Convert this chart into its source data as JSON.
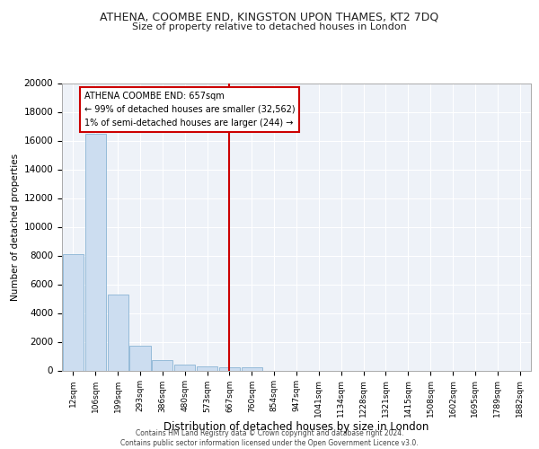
{
  "title": "ATHENA, COOMBE END, KINGSTON UPON THAMES, KT2 7DQ",
  "subtitle": "Size of property relative to detached houses in London",
  "xlabel": "Distribution of detached houses by size in London",
  "ylabel": "Number of detached properties",
  "bar_color": "#ccddf0",
  "bar_edge_color": "#8ab4d4",
  "background_color": "#eef2f8",
  "grid_color": "#ffffff",
  "vline_color": "#cc0000",
  "annotation_title": "ATHENA COOMBE END: 657sqm",
  "annotation_line1": "← 99% of detached houses are smaller (32,562)",
  "annotation_line2": "1% of semi-detached houses are larger (244) →",
  "annotation_box_color": "#ffffff",
  "annotation_box_edge_color": "#cc0000",
  "categories": [
    "12sqm",
    "106sqm",
    "199sqm",
    "293sqm",
    "386sqm",
    "480sqm",
    "573sqm",
    "667sqm",
    "760sqm",
    "854sqm",
    "947sqm",
    "1041sqm",
    "1134sqm",
    "1228sqm",
    "1321sqm",
    "1415sqm",
    "1508sqm",
    "1602sqm",
    "1695sqm",
    "1789sqm",
    "1882sqm"
  ],
  "values": [
    8100,
    16500,
    5300,
    1750,
    700,
    380,
    280,
    200,
    200,
    0,
    0,
    0,
    0,
    0,
    0,
    0,
    0,
    0,
    0,
    0,
    0
  ],
  "ylim": [
    0,
    20000
  ],
  "yticks": [
    0,
    2000,
    4000,
    6000,
    8000,
    10000,
    12000,
    14000,
    16000,
    18000,
    20000
  ],
  "footer_line1": "Contains HM Land Registry data © Crown copyright and database right 2024.",
  "footer_line2": "Contains public sector information licensed under the Open Government Licence v3.0."
}
